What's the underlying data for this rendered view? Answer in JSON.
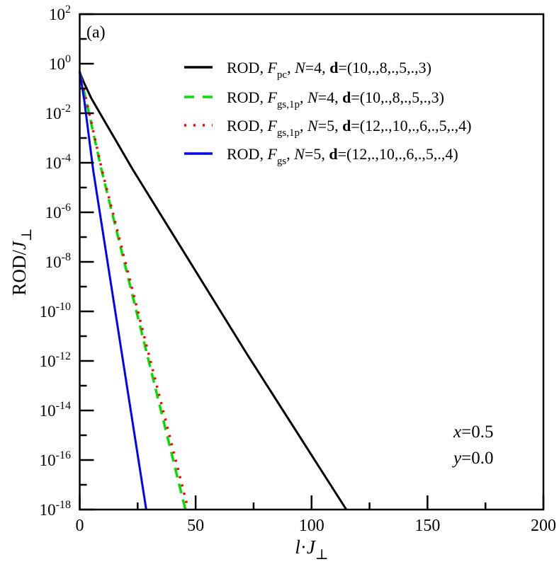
{
  "chart_data": {
    "type": "line",
    "panel_label": "(a)",
    "xlabel": "l·J⊥",
    "ylabel": "ROD/J⊥",
    "xlim": [
      0,
      200
    ],
    "ylim": [
      1e-18,
      100.0
    ],
    "yscale": "log",
    "xticks": [
      0,
      50,
      100,
      150,
      200
    ],
    "xtick_labels": [
      "0",
      "50",
      "100",
      "150",
      "200"
    ],
    "yticks_exp": [
      2,
      0,
      -2,
      -4,
      -6,
      -8,
      -10,
      -12,
      -14,
      -16,
      -18
    ],
    "ytick_labels": [
      "10^2",
      "10^0",
      "10^-2",
      "10^-4",
      "10^-6",
      "10^-8",
      "10^-10",
      "10^-12",
      "10^-14",
      "10^-16",
      "10^-18"
    ],
    "grid": false,
    "legend_position": "top-right",
    "annotations": [
      "x=0.5",
      "y=0.0"
    ],
    "series": [
      {
        "name": "ROD, F_pc, N=4, d=(10,.,8,.,5,.,3)",
        "color": "#000000",
        "style": "solid",
        "x": [
          0,
          2,
          5,
          10,
          23,
          72,
          115
        ],
        "y": [
          0.45,
          0.16,
          0.04,
          0.0063,
          5.1e-05,
          2e-12,
          1e-18
        ]
      },
      {
        "name": "ROD, F_gs,1p, N=4, d=(10,.,8,.,5,.,3)",
        "color": "#00e000",
        "style": "dashed",
        "x": [
          0,
          3.8,
          9.4,
          45.6
        ],
        "y": [
          0.45,
          0.0123,
          5.1e-05,
          1e-18
        ]
      },
      {
        "name": "ROD, F_gs,1p, N=5, d=(12,.,10,.,6,.,5,.,4)",
        "color": "#ff0000",
        "style": "dotted",
        "x": [
          0,
          3.9,
          9.6,
          46.8
        ],
        "y": [
          0.45,
          0.0123,
          5.1e-05,
          1e-18
        ]
      },
      {
        "name": "ROD, F_gs, N=5, d=(12,.,10,.,6,.,5,.,4)",
        "color": "#0000ff",
        "style": "solid",
        "x": [
          0,
          2,
          5.8,
          28.7
        ],
        "y": [
          0.5,
          0.032,
          5.1e-05,
          1e-18
        ]
      }
    ]
  },
  "legend": [
    {
      "pre": "ROD, ",
      "F": "F",
      "sub": "pc",
      "mid": ", ",
      "N": "N",
      "nval": "=4, ",
      "d": "d",
      "dval": "=(10,.,8,.,5,.,3)"
    },
    {
      "pre": "ROD, ",
      "F": "F",
      "sub": "gs,1p",
      "mid": ", ",
      "N": "N",
      "nval": "=4, ",
      "d": "d",
      "dval": "=(10,.,8,.,5,.,3)"
    },
    {
      "pre": "ROD, ",
      "F": "F",
      "sub": "gs,1p",
      "mid": ", ",
      "N": "N",
      "nval": "=5, ",
      "d": "d",
      "dval": "=(12,.,10,.,6,.,5,.,4)"
    },
    {
      "pre": "ROD, ",
      "F": "F",
      "sub": "gs",
      "mid": ", ",
      "N": "N",
      "nval": "=5, ",
      "d": "d",
      "dval": "=(12,.,10,.,6,.,5,.,4)"
    }
  ],
  "params": {
    "x_var": "x",
    "x_val": "=0.5",
    "y_var": "y",
    "y_val": "=0.0"
  },
  "axis_text": {
    "ylabel_main": "ROD/",
    "ylabel_J": "J",
    "ylabel_sub": "⊥",
    "xlabel_l": "l",
    "xlabel_dot": "·",
    "xlabel_J": "J",
    "xlabel_sub": "⊥",
    "tick_base": "10"
  }
}
